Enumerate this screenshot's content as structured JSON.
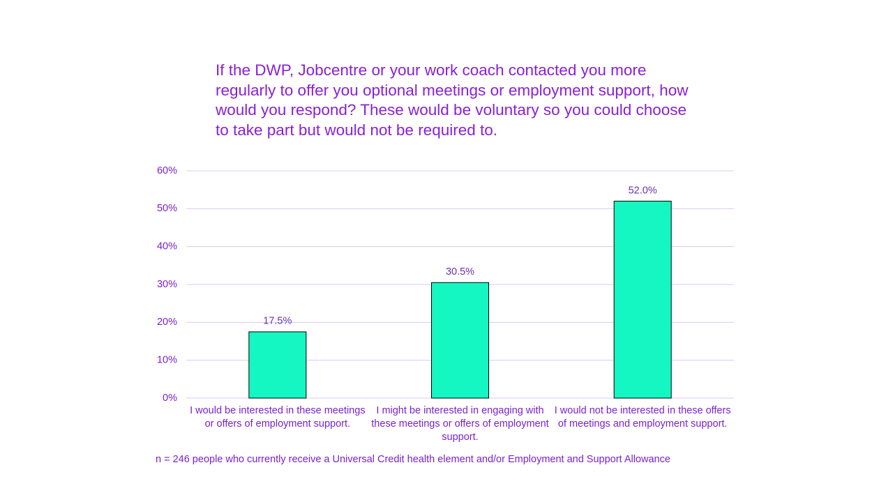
{
  "chart_data": {
    "type": "bar",
    "title": "If the DWP, Jobcentre or your work coach contacted you more regularly to offer you optional meetings or employment support, how would you respond? These would be voluntary so you could choose to take part but would not be required to.",
    "categories": [
      "I would be interested in these meetings or offers of employment support.",
      "I might be interested in engaging with these meetings or offers of employment support.",
      "I would not be interested in these offers of meetings and employment support."
    ],
    "values": [
      17.5,
      30.5,
      52.0
    ],
    "value_labels": [
      "17.5%",
      "30.5%",
      "52.0%"
    ],
    "color": "#14f7c2",
    "ylim": [
      0,
      60
    ],
    "yticks": [
      {
        "value": 0,
        "label": "0%"
      },
      {
        "value": 10,
        "label": "10%"
      },
      {
        "value": 20,
        "label": "20%"
      },
      {
        "value": 30,
        "label": "30%"
      },
      {
        "value": 40,
        "label": "40%"
      },
      {
        "value": 50,
        "label": "50%"
      },
      {
        "value": 60,
        "label": "60%"
      }
    ],
    "grid": true,
    "note": "n = 246 people who currently receive a Universal Credit health element and/or Employment and Support Allowance"
  }
}
